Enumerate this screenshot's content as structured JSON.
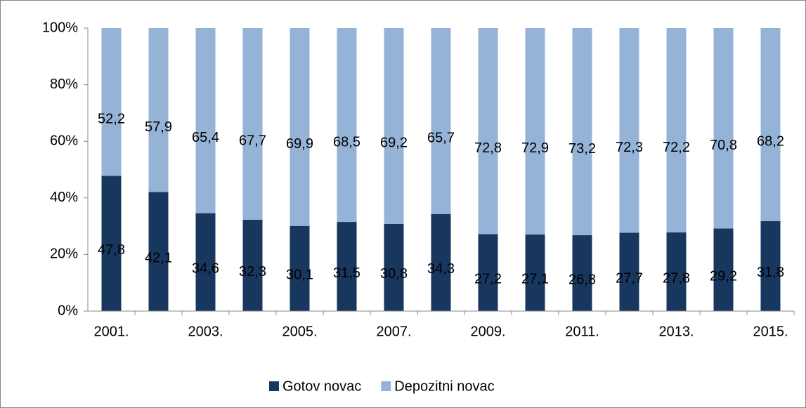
{
  "chart_data": {
    "type": "stacked_bar_100",
    "categories": [
      "2001.",
      null,
      "2003.",
      null,
      "2005.",
      null,
      "2007.",
      null,
      "2009.",
      null,
      "2011.",
      null,
      "2013.",
      null,
      "2015."
    ],
    "series": [
      {
        "name": "Gotov novac",
        "color": "#17375e",
        "values": [
          47.8,
          42.1,
          34.6,
          32.3,
          30.1,
          31.5,
          30.8,
          34.3,
          27.2,
          27.1,
          26.8,
          27.7,
          27.8,
          29.2,
          31.8
        ],
        "value_labels": [
          "47,8",
          "42,1",
          "34,6",
          "32,3",
          "30,1",
          "31,5",
          "30,8",
          "34,3",
          "27,2",
          "27,1",
          "26,8",
          "27,7",
          "27,8",
          "29,2",
          "31,8"
        ]
      },
      {
        "name": "Depozitni novac",
        "color": "#95b3d7",
        "values": [
          52.2,
          57.9,
          65.4,
          67.7,
          69.9,
          68.5,
          69.2,
          65.7,
          72.8,
          72.9,
          73.2,
          72.3,
          72.2,
          70.8,
          68.2
        ],
        "value_labels": [
          "52,2",
          "57,9",
          "65,4",
          "67,7",
          "69,9",
          "68,5",
          "69,2",
          "65,7",
          "72,8",
          "72,9",
          "73,2",
          "72,3",
          "72,2",
          "70,8",
          "68,2"
        ]
      }
    ],
    "ylim": [
      0,
      100
    ],
    "yticks": [
      {
        "value": 0,
        "label": "0%"
      },
      {
        "value": 20,
        "label": "20%"
      },
      {
        "value": 40,
        "label": "40%"
      },
      {
        "value": 60,
        "label": "60%"
      },
      {
        "value": 80,
        "label": "80%"
      },
      {
        "value": 100,
        "label": "100%"
      }
    ],
    "legend": "bottom"
  }
}
